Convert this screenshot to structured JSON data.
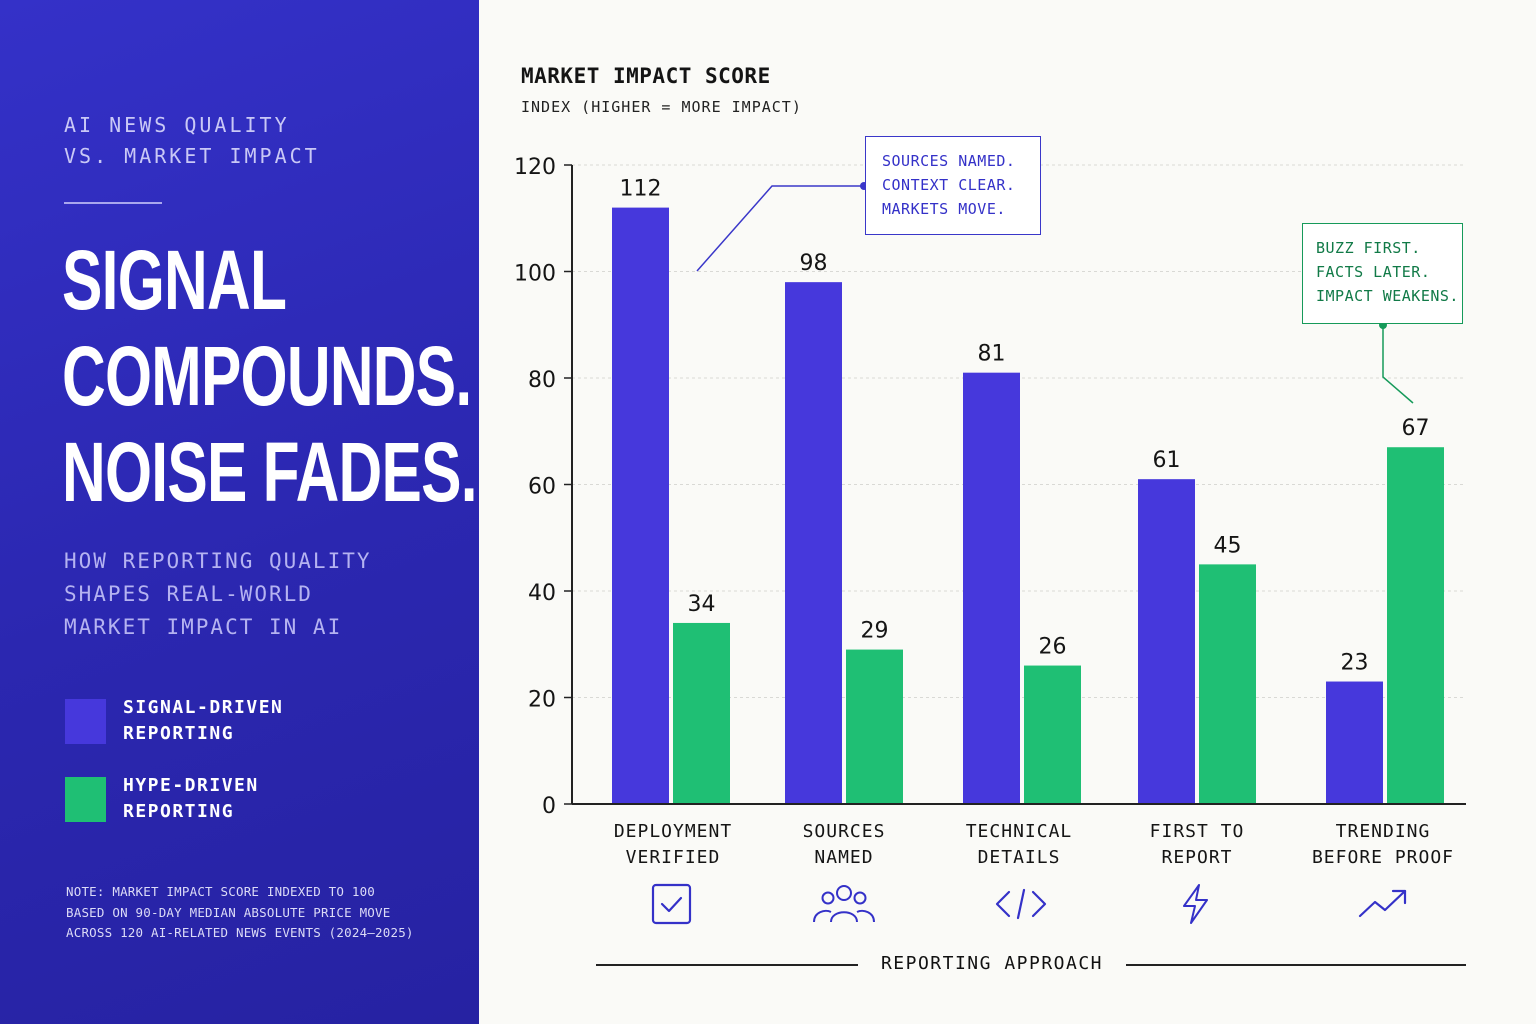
{
  "left_panel": {
    "kicker": [
      "AI NEWS QUALITY",
      "VS. MARKET IMPACT"
    ],
    "headline": [
      "SIGNAL",
      "COMPOUNDS.",
      "NOISE FADES."
    ],
    "subhead": [
      "HOW REPORTING QUALITY",
      "SHAPES REAL-WORLD",
      "MARKET IMPACT IN AI"
    ],
    "legend": [
      {
        "label": [
          "SIGNAL-DRIVEN",
          "REPORTING"
        ],
        "color": "#4638dc"
      },
      {
        "label": [
          "HYPE-DRIVEN",
          "REPORTING"
        ],
        "color": "#1fbf74"
      }
    ],
    "note": [
      "NOTE: MARKET IMPACT SCORE INDEXED TO 100",
      "BASED ON 90-DAY MEDIAN ABSOLUTE PRICE MOVE",
      "ACROSS 120 AI-RELATED NEWS EVENTS (2024–2025)"
    ]
  },
  "callouts": {
    "signal": [
      "SOURCES NAMED.",
      "CONTEXT CLEAR.",
      "MARKETS MOVE."
    ],
    "hype": [
      "BUZZ FIRST.",
      "FACTS LATER.",
      "IMPACT WEAKENS."
    ]
  },
  "chart_data": {
    "type": "bar",
    "title": "MARKET IMPACT SCORE",
    "ylabel": "INDEX (HIGHER = MORE IMPACT)",
    "xlabel": "REPORTING APPROACH",
    "categories": [
      [
        "DEPLOYMENT",
        "VERIFIED"
      ],
      [
        "SOURCES",
        "NAMED"
      ],
      [
        "TECHNICAL",
        "DETAILS"
      ],
      [
        "FIRST TO",
        "REPORT"
      ],
      [
        "TRENDING",
        "BEFORE PROOF"
      ]
    ],
    "category_icons": [
      "check-box-icon",
      "people-group-icon",
      "code-brackets-icon",
      "lightning-bolt-icon",
      "trend-up-arrow-icon"
    ],
    "series": [
      {
        "name": "SIGNAL-DRIVEN REPORTING",
        "color": "#4638dc",
        "values": [
          112,
          98,
          81,
          61,
          23
        ]
      },
      {
        "name": "HYPE-DRIVEN REPORTING",
        "color": "#1fbf74",
        "values": [
          34,
          29,
          26,
          45,
          67
        ]
      }
    ],
    "ylim": [
      0,
      120
    ],
    "yticks": [
      0,
      20,
      40,
      60,
      80,
      100,
      120
    ],
    "grid": true,
    "legend_position": "left panel"
  }
}
